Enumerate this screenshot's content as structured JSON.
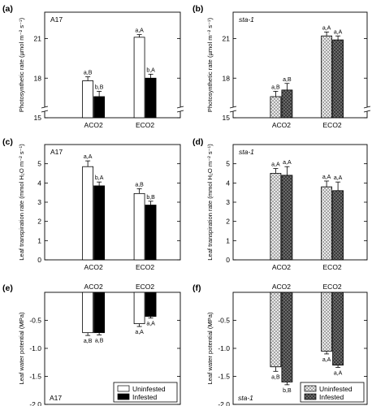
{
  "colors": {
    "uninfested_a17": "#ffffff",
    "infested": "#000000",
    "uninfested_sta1_pattern": "crosshatch-light",
    "infested_sta1_pattern": "crosshatch-dark"
  },
  "legend": {
    "uninfested": "Uninfested",
    "infested": "Infested"
  },
  "chart_data": [
    {
      "id": "a",
      "tag": "(a)",
      "type": "bar",
      "inset": "A17",
      "ylabel": "Photosynthetic rate (µmol m⁻² s⁻¹)",
      "ylim": [
        15,
        23
      ],
      "yticks": [
        15,
        18,
        21
      ],
      "yticklabels": [
        "15",
        "18",
        "21"
      ],
      "axis_break": true,
      "categories": [
        "ACO2",
        "ECO2"
      ],
      "series": [
        {
          "name": "Uninfested",
          "values": [
            17.8,
            21.1
          ],
          "errors": [
            0.3,
            0.2
          ],
          "labels": [
            "a,B",
            "a,A"
          ]
        },
        {
          "name": "Infested",
          "values": [
            16.6,
            18.0
          ],
          "errors": [
            0.4,
            0.3
          ],
          "labels": [
            "b,B",
            "b,A"
          ]
        }
      ]
    },
    {
      "id": "b",
      "tag": "(b)",
      "type": "bar",
      "inset": "sta-1",
      "ylabel": "Photosynthetic rate (µmol m⁻² s⁻¹)",
      "ylim": [
        15,
        23
      ],
      "yticks": [
        15,
        18,
        21
      ],
      "yticklabels": [
        "15",
        "18",
        "21"
      ],
      "axis_break": true,
      "categories": [
        "ACO2",
        "ECO2"
      ],
      "series": [
        {
          "name": "Uninfested",
          "values": [
            16.6,
            21.2
          ],
          "errors": [
            0.4,
            0.3
          ],
          "labels": [
            "a,B",
            "a,A"
          ]
        },
        {
          "name": "Infested",
          "values": [
            17.1,
            20.9
          ],
          "errors": [
            0.5,
            0.3
          ],
          "labels": [
            "a,B",
            "a,A"
          ]
        }
      ]
    },
    {
      "id": "c",
      "tag": "(c)",
      "type": "bar",
      "inset": "A17",
      "ylabel": "Leaf transpiration rate (mmol H₂O m⁻² s⁻¹)",
      "ylim": [
        0,
        6
      ],
      "yticks": [
        0,
        1,
        2,
        3,
        4,
        5
      ],
      "yticklabels": [
        "0",
        "1",
        "2",
        "3",
        "4",
        "5"
      ],
      "categories": [
        "ACO2",
        "ECO2"
      ],
      "series": [
        {
          "name": "Uninfested",
          "values": [
            4.85,
            3.45
          ],
          "errors": [
            0.3,
            0.25
          ],
          "labels": [
            "a,A",
            "a,B"
          ]
        },
        {
          "name": "Infested",
          "values": [
            3.85,
            2.85
          ],
          "errors": [
            0.2,
            0.2
          ],
          "labels": [
            "b,A",
            "b,B"
          ]
        }
      ]
    },
    {
      "id": "d",
      "tag": "(d)",
      "type": "bar",
      "inset": "sta-1",
      "ylabel": "Leaf transpiration rate (mmol H₂O m⁻² s⁻¹)",
      "ylim": [
        0,
        6
      ],
      "yticks": [
        0,
        1,
        2,
        3,
        4,
        5
      ],
      "yticklabels": [
        "0",
        "1",
        "2",
        "3",
        "4",
        "5"
      ],
      "categories": [
        "ACO2",
        "ECO2"
      ],
      "series": [
        {
          "name": "Uninfested",
          "values": [
            4.5,
            3.8
          ],
          "errors": [
            0.25,
            0.3
          ],
          "labels": [
            "a,A",
            "a,A"
          ]
        },
        {
          "name": "Infested",
          "values": [
            4.4,
            3.6
          ],
          "errors": [
            0.45,
            0.45
          ],
          "labels": [
            "a,A",
            "a,A"
          ]
        }
      ]
    },
    {
      "id": "e",
      "tag": "(e)",
      "type": "bar",
      "inset": "A17",
      "ylabel": "Leaf water potential (MPa)",
      "ylim": [
        -2.0,
        0
      ],
      "yticks": [
        -2.0,
        -1.5,
        -1.0,
        -0.5
      ],
      "yticklabels": [
        "-2.0",
        "-1.5",
        "-1.0",
        "-0.5"
      ],
      "categories": [
        "ACO2",
        "ECO2"
      ],
      "categories_on_top": true,
      "legend": "bottom-right",
      "series": [
        {
          "name": "Uninfested",
          "values": [
            -0.72,
            -0.56
          ],
          "errors": [
            0.05,
            0.05
          ],
          "labels": [
            "a,B",
            "a,A"
          ]
        },
        {
          "name": "Infested",
          "values": [
            -0.72,
            -0.43
          ],
          "errors": [
            0.04,
            0.03
          ],
          "labels": [
            "a,B",
            "a,A"
          ]
        }
      ]
    },
    {
      "id": "f",
      "tag": "(f)",
      "type": "bar",
      "inset": "sta-1",
      "ylabel": "Leaf water potential (MPa)",
      "ylim": [
        -2.0,
        0
      ],
      "yticks": [
        -2.0,
        -1.5,
        -1.0,
        -0.5
      ],
      "yticklabels": [
        "-2.0",
        "-1.5",
        "-1.0",
        "-0.5"
      ],
      "categories": [
        "ACO2",
        "ECO2"
      ],
      "categories_on_top": true,
      "legend": "bottom-right",
      "series": [
        {
          "name": "Uninfested",
          "values": [
            -1.33,
            -1.05
          ],
          "errors": [
            0.08,
            0.05
          ],
          "labels": [
            "a,B",
            "a,A"
          ]
        },
        {
          "name": "Infested",
          "values": [
            -1.6,
            -1.3
          ],
          "errors": [
            0.05,
            0.04
          ],
          "labels": [
            "b,B",
            "a,A"
          ]
        }
      ]
    }
  ]
}
